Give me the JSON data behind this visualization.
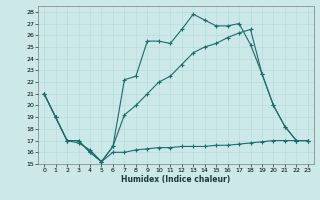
{
  "xlabel": "Humidex (Indice chaleur)",
  "bg_color": "#cce8e8",
  "line_color": "#1a6b6b",
  "xlim": [
    -0.5,
    23.5
  ],
  "ylim": [
    15,
    28.5
  ],
  "xticks": [
    0,
    1,
    2,
    3,
    4,
    5,
    6,
    7,
    8,
    9,
    10,
    11,
    12,
    13,
    14,
    15,
    16,
    17,
    18,
    19,
    20,
    21,
    22,
    23
  ],
  "yticks": [
    15,
    16,
    17,
    18,
    19,
    20,
    21,
    22,
    23,
    24,
    25,
    26,
    27,
    28
  ],
  "line1_x": [
    0,
    1,
    2,
    3,
    4,
    5,
    6,
    7,
    8,
    9,
    10,
    11,
    12,
    13,
    14,
    15,
    16,
    17,
    18,
    19,
    20,
    21,
    22,
    23
  ],
  "line1_y": [
    21,
    19,
    17,
    17,
    16,
    15.2,
    16.5,
    22.2,
    22.5,
    25.5,
    25.5,
    25.3,
    26.5,
    27.8,
    27.3,
    26.8,
    26.8,
    27.0,
    25.2,
    22.7,
    20.0,
    18.2,
    17.0,
    17.0
  ],
  "line2_x": [
    0,
    1,
    2,
    3,
    4,
    5,
    6,
    7,
    8,
    9,
    10,
    11,
    12,
    13,
    14,
    15,
    16,
    17,
    18,
    19,
    20,
    21,
    22,
    23
  ],
  "line2_y": [
    21,
    19,
    17,
    17,
    16,
    15.2,
    16.5,
    19.2,
    20.0,
    21.0,
    22.0,
    22.5,
    23.5,
    24.5,
    25.0,
    25.3,
    25.8,
    26.2,
    26.5,
    22.7,
    20.0,
    18.2,
    17.0,
    17.0
  ],
  "line3_x": [
    0,
    1,
    2,
    3,
    4,
    5,
    6,
    7,
    8,
    9,
    10,
    11,
    12,
    13,
    14,
    15,
    16,
    17,
    18,
    19,
    20,
    21,
    22,
    23
  ],
  "line3_y": [
    21,
    19,
    17,
    16.8,
    16.2,
    15.2,
    16.0,
    16.0,
    16.2,
    16.3,
    16.4,
    16.4,
    16.5,
    16.5,
    16.5,
    16.6,
    16.6,
    16.7,
    16.8,
    16.9,
    17.0,
    17.0,
    17.0,
    17.0
  ]
}
